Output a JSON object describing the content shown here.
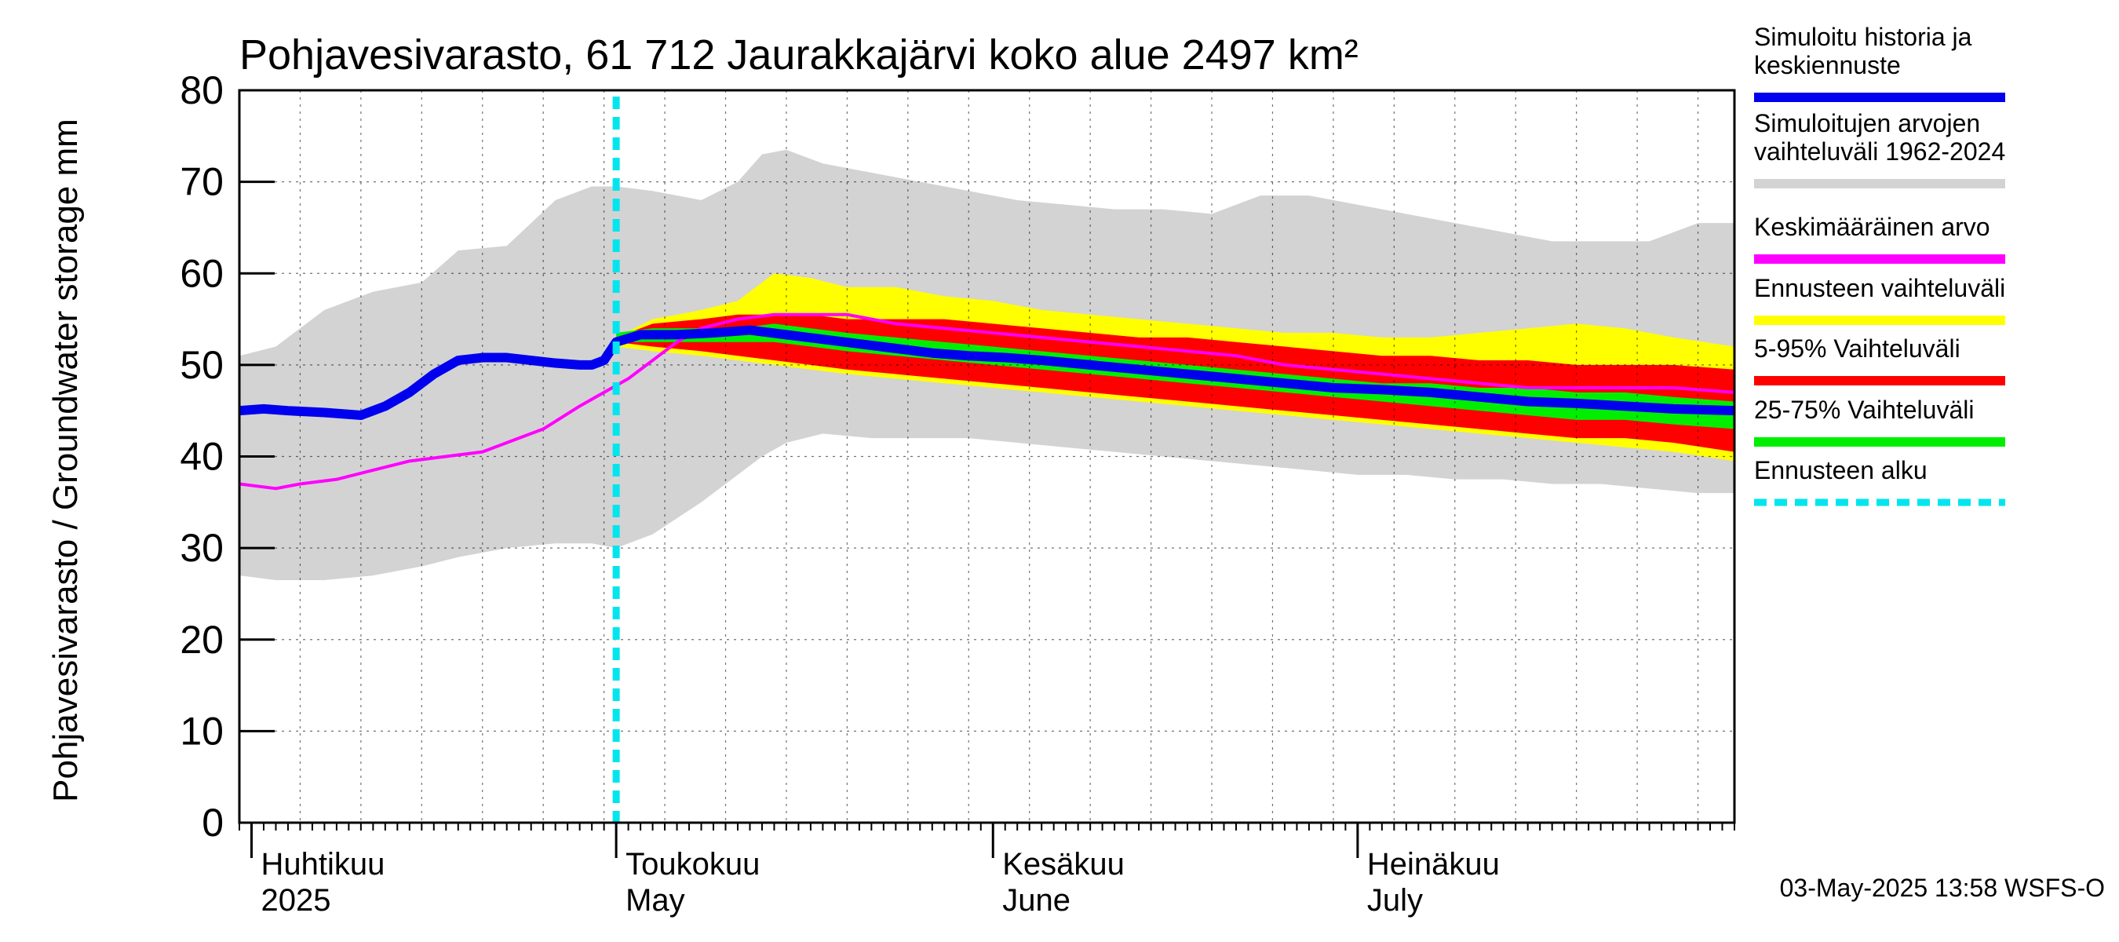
{
  "chart_data": {
    "type": "area",
    "title": "Pohjavesivarasto, 61 712 Jaurakkajärvi koko alue 2497 km²",
    "ylabel": "Pohjavesivarasto / Groundwater storage   mm",
    "ylim": [
      0,
      80
    ],
    "yticks": [
      0,
      10,
      20,
      30,
      40,
      50,
      60,
      70,
      80
    ],
    "x_unit": "day of year 2025 (1 = 1 Jan)",
    "xlim": [
      90,
      213
    ],
    "month_labels": [
      {
        "day": 91,
        "fi": "Huhtikuu",
        "en": "2025"
      },
      {
        "day": 121,
        "fi": "Toukokuu",
        "en": "May"
      },
      {
        "day": 152,
        "fi": "Kesäkuu",
        "en": "June"
      },
      {
        "day": 182,
        "fi": "Heinäkuu",
        "en": "July"
      }
    ],
    "forecast_start_day": 121,
    "footer": "03-May-2025 13:58 WSFS-O",
    "grid": true,
    "legend_position": "right",
    "legend": [
      {
        "label": "Simuloitu historia ja keskiennuste",
        "lines": [
          "Simuloitu historia ja",
          "keskiennuste"
        ],
        "color": "#0000ee"
      },
      {
        "label": "Simuloitujen arvojen vaihteluväli 1962-2024",
        "lines": [
          "Simuloitujen arvojen",
          "vaihteluväli 1962-2024"
        ],
        "color": "#d3d3d3"
      },
      {
        "label": "Keskimääräinen arvo",
        "lines": [
          "Keskimääräinen arvo"
        ],
        "color": "#ff00ff"
      },
      {
        "label": "Ennusteen vaihteluväli",
        "lines": [
          "Ennusteen vaihteluväli"
        ],
        "color": "#ffff00"
      },
      {
        "label": "5-95% Vaihteluväli",
        "lines": [
          "5-95% Vaihteluväli"
        ],
        "color": "#ff0000"
      },
      {
        "label": "25-75% Vaihteluväli",
        "lines": [
          "25-75% Vaihteluväli"
        ],
        "color": "#00ee00"
      },
      {
        "label": "Ennusteen alku",
        "lines": [
          "Ennusteen alku"
        ],
        "color": "#00e5ee"
      }
    ],
    "series": {
      "history_range": {
        "name": "Simuloitujen arvojen vaihteluväli 1962-2024",
        "x": [
          90,
          93,
          97,
          101,
          105,
          108,
          112,
          116,
          119,
          121,
          124,
          128,
          131,
          133,
          135,
          138,
          142,
          146,
          150,
          154,
          158,
          162,
          166,
          170,
          174,
          178,
          182,
          186,
          190,
          194,
          198,
          202,
          206,
          210,
          213
        ],
        "upper": [
          51,
          52,
          56,
          58,
          59,
          62.5,
          63,
          68,
          69.5,
          69.5,
          69,
          68,
          70,
          73,
          73.5,
          72,
          71,
          70,
          69,
          68,
          67.5,
          67,
          67,
          66.5,
          68.5,
          68.5,
          67.5,
          66.5,
          65.5,
          64.5,
          63.5,
          63.5,
          63.5,
          65.5,
          65.5
        ],
        "lower": [
          27,
          26.5,
          26.5,
          27,
          28,
          29,
          30,
          30.5,
          30.5,
          30,
          31.5,
          35,
          38,
          40,
          41.5,
          42.5,
          42,
          42,
          42,
          41.5,
          41,
          40.5,
          40,
          39.5,
          39,
          38.5,
          38,
          38,
          37.5,
          37.5,
          37,
          37,
          36.5,
          36,
          36
        ]
      },
      "forecast_range": {
        "name": "Ennusteen vaihteluväli",
        "x": [
          121,
          124,
          128,
          131,
          134,
          137,
          140,
          144,
          148,
          152,
          156,
          160,
          164,
          168,
          172,
          176,
          180,
          184,
          188,
          192,
          196,
          200,
          204,
          208,
          213
        ],
        "upper": [
          53,
          55,
          56,
          57,
          60,
          59.5,
          58.5,
          58.5,
          57.5,
          57,
          56,
          55.5,
          55,
          54.5,
          54,
          53.5,
          53.5,
          53,
          53,
          53.5,
          54,
          54.5,
          54,
          53,
          52
        ],
        "lower": [
          52,
          51.5,
          51,
          50.5,
          50,
          49.5,
          49,
          48.5,
          48,
          47.5,
          47,
          46.5,
          46,
          45.5,
          45,
          44.5,
          44,
          43.5,
          43,
          42.5,
          42,
          41.5,
          41,
          40.5,
          39.5
        ]
      },
      "p5_95": {
        "name": "5-95% Vaihteluväli",
        "x": [
          121,
          124,
          128,
          131,
          134,
          137,
          140,
          144,
          148,
          152,
          156,
          160,
          164,
          168,
          172,
          176,
          180,
          184,
          188,
          192,
          196,
          200,
          204,
          208,
          213
        ],
        "upper": [
          53,
          54.5,
          55,
          55.5,
          55.5,
          55.5,
          55,
          55,
          55,
          54.5,
          54,
          53.5,
          53,
          53,
          52.5,
          52,
          51.5,
          51,
          51,
          50.5,
          50.5,
          50,
          50,
          50,
          49.5
        ],
        "lower": [
          52.5,
          52,
          51.5,
          51,
          50.5,
          50,
          49.5,
          49,
          48.5,
          48,
          47.5,
          47,
          46.5,
          46,
          45.5,
          45,
          44.5,
          44,
          43.5,
          43,
          42.5,
          42,
          42,
          41.5,
          40.5
        ]
      },
      "p25_75": {
        "name": "25-75% Vaihteluväli",
        "x": [
          121,
          124,
          128,
          131,
          134,
          137,
          140,
          144,
          148,
          152,
          156,
          160,
          164,
          168,
          172,
          176,
          180,
          184,
          188,
          192,
          196,
          200,
          204,
          208,
          213
        ],
        "upper": [
          53.5,
          54,
          54,
          54,
          54.5,
          54,
          53.5,
          53,
          52.5,
          52,
          51.5,
          51,
          50.5,
          50,
          49.5,
          49,
          48.5,
          48,
          48,
          47.5,
          47.5,
          47,
          47,
          46.5,
          46
        ],
        "lower": [
          52.5,
          52.5,
          52.5,
          52.5,
          52.5,
          52,
          51.5,
          51,
          50.5,
          50,
          49.5,
          49,
          48.5,
          48,
          47.5,
          47,
          46.5,
          46,
          45.5,
          45,
          44.5,
          44,
          44,
          43.5,
          43
        ]
      },
      "mean": {
        "name": "Keskimääräinen arvo",
        "x": [
          90,
          93,
          95,
          98,
          101,
          104,
          107,
          110,
          113,
          115,
          118,
          120,
          122,
          124,
          126,
          128,
          131,
          134,
          137,
          140,
          144,
          148,
          152,
          156,
          160,
          164,
          168,
          172,
          176,
          180,
          184,
          188,
          192,
          196,
          200,
          204,
          208,
          213
        ],
        "y": [
          37,
          36.5,
          37,
          37.5,
          38.5,
          39.5,
          40,
          40.5,
          42,
          43,
          45.5,
          47,
          48.5,
          50.5,
          52.5,
          54,
          55,
          55.5,
          55.5,
          55.5,
          54.5,
          54,
          53.5,
          53,
          52.5,
          52,
          51.5,
          51,
          50,
          49.5,
          49,
          48.5,
          48,
          47.5,
          47.5,
          47.5,
          47.5,
          47
        ]
      },
      "simulated": {
        "name": "Simuloitu historia ja keskiennuste",
        "x": [
          90,
          92,
          94,
          97,
          100,
          102,
          104,
          106,
          108,
          110,
          112,
          114,
          116,
          118,
          119,
          120,
          121,
          123,
          126,
          129,
          132,
          135,
          138,
          141,
          144,
          147,
          150,
          153,
          156,
          160,
          164,
          168,
          172,
          176,
          180,
          184,
          188,
          192,
          196,
          200,
          204,
          208,
          213
        ],
        "y": [
          45,
          45.2,
          45,
          44.8,
          44.5,
          45.5,
          47,
          49,
          50.5,
          50.8,
          50.8,
          50.5,
          50.2,
          50,
          50,
          50.5,
          52.5,
          53.3,
          53.3,
          53.5,
          53.8,
          53.3,
          52.8,
          52.3,
          51.8,
          51.3,
          51,
          50.8,
          50.5,
          50,
          49.5,
          49,
          48.5,
          48,
          47.5,
          47.3,
          47,
          46.5,
          46,
          45.8,
          45.5,
          45.2,
          45
        ]
      }
    }
  }
}
